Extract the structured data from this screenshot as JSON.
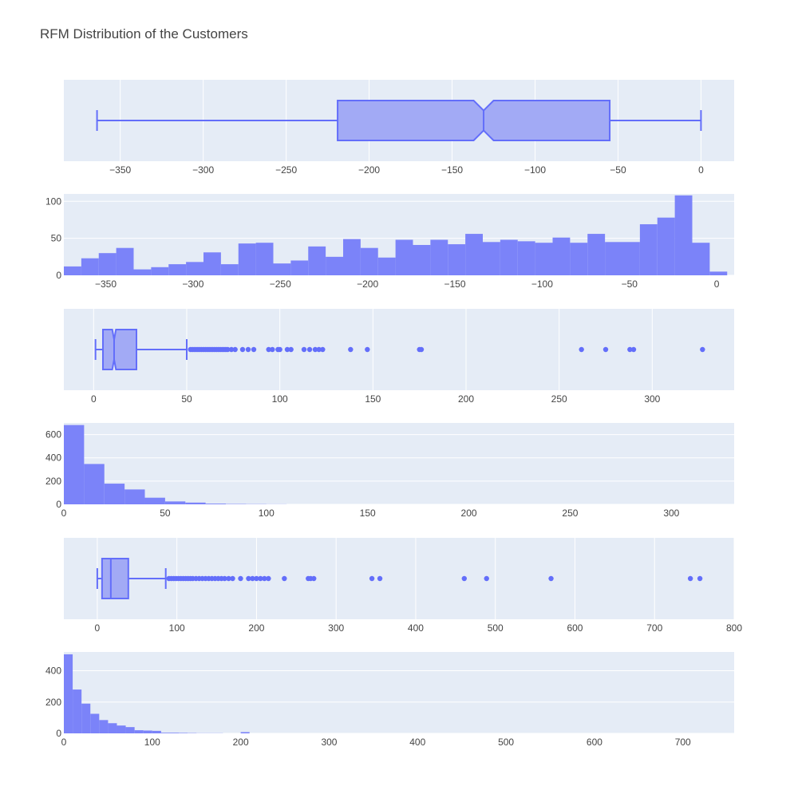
{
  "title": "RFM Distribution of the Customers",
  "colors": {
    "plot_bg": "#e5ecf6",
    "grid": "#ffffff",
    "box_fill": "#a2aaf5",
    "box_line": "#636efa",
    "bar_fill": "#7b83f9",
    "point": "#636efa",
    "text": "#444444"
  },
  "chart_data": [
    {
      "type": "box",
      "orientation": "horizontal",
      "notched": true,
      "xlim": [
        -384,
        20
      ],
      "ticks": [
        {
          "v": -350,
          "label": "−350"
        },
        {
          "v": -300,
          "label": "−300"
        },
        {
          "v": -250,
          "label": "−250"
        },
        {
          "v": -200,
          "label": "−200"
        },
        {
          "v": -150,
          "label": "−150"
        },
        {
          "v": -100,
          "label": "−100"
        },
        {
          "v": -50,
          "label": "−50"
        },
        {
          "v": 0,
          "label": "0"
        }
      ],
      "lower_fence": -364,
      "q1": -219,
      "median": -131,
      "q3": -55,
      "upper_fence": 0,
      "notch": [
        -137,
        -125
      ],
      "outliers": []
    },
    {
      "type": "histogram",
      "xlim": [
        -374,
        10
      ],
      "ylim": [
        0,
        110
      ],
      "bin_start": -374,
      "bin_width": 10,
      "counts": [
        12,
        23,
        30,
        37,
        8,
        11,
        15,
        18,
        31,
        15,
        43,
        44,
        16,
        20,
        39,
        25,
        49,
        37,
        24,
        48,
        41,
        48,
        42,
        56,
        45,
        48,
        46,
        44,
        51,
        44,
        56,
        45,
        45,
        69,
        78,
        108,
        44,
        5
      ],
      "xticks": [
        {
          "v": -350,
          "label": "−350"
        },
        {
          "v": -300,
          "label": "−300"
        },
        {
          "v": -250,
          "label": "−250"
        },
        {
          "v": -200,
          "label": "−200"
        },
        {
          "v": -150,
          "label": "−150"
        },
        {
          "v": -100,
          "label": "−100"
        },
        {
          "v": -50,
          "label": "−50"
        },
        {
          "v": 0,
          "label": "0"
        }
      ],
      "yticks": [
        {
          "v": 0,
          "label": "0"
        },
        {
          "v": 50,
          "label": "50"
        },
        {
          "v": 100,
          "label": "100"
        }
      ]
    },
    {
      "type": "box",
      "orientation": "horizontal",
      "notched": true,
      "xlim": [
        -16,
        344
      ],
      "ticks": [
        {
          "v": 0,
          "label": "0"
        },
        {
          "v": 50,
          "label": "50"
        },
        {
          "v": 100,
          "label": "100"
        },
        {
          "v": 150,
          "label": "150"
        },
        {
          "v": 200,
          "label": "200"
        },
        {
          "v": 250,
          "label": "250"
        },
        {
          "v": 300,
          "label": "300"
        }
      ],
      "lower_fence": 1,
      "q1": 5,
      "median": 11,
      "q3": 23,
      "upper_fence": 50,
      "notch": [
        10,
        12
      ],
      "outliers": [
        52,
        53,
        54,
        55,
        56,
        57,
        58,
        59,
        60,
        61,
        62,
        63,
        64,
        65,
        66,
        67,
        68,
        69,
        70,
        71,
        72,
        74,
        76,
        80,
        83,
        86,
        94,
        96,
        99,
        100,
        104,
        106,
        113,
        116,
        119,
        121,
        123,
        138,
        147,
        175,
        176,
        262,
        275,
        288,
        290,
        327
      ]
    },
    {
      "type": "histogram",
      "xlim": [
        0,
        331
      ],
      "ylim": [
        0,
        700
      ],
      "bin_start": 0,
      "bin_width": 10,
      "counts": [
        682,
        347,
        178,
        128,
        57,
        25,
        15,
        6,
        3,
        2,
        1,
        0,
        0,
        0,
        0,
        0,
        0,
        0,
        0,
        0,
        0,
        0,
        0,
        0,
        0,
        0,
        0,
        0,
        0,
        0,
        0,
        0,
        0
      ],
      "xticks": [
        {
          "v": 0,
          "label": "0"
        },
        {
          "v": 50,
          "label": "50"
        },
        {
          "v": 100,
          "label": "100"
        },
        {
          "v": 150,
          "label": "150"
        },
        {
          "v": 200,
          "label": "200"
        },
        {
          "v": 250,
          "label": "250"
        },
        {
          "v": 300,
          "label": "300"
        }
      ],
      "yticks": [
        {
          "v": 0,
          "label": "0"
        },
        {
          "v": 200,
          "label": "200"
        },
        {
          "v": 400,
          "label": "400"
        },
        {
          "v": 600,
          "label": "600"
        }
      ]
    },
    {
      "type": "box",
      "orientation": "horizontal",
      "notched": false,
      "xlim": [
        -42,
        800
      ],
      "ticks": [
        {
          "v": 0,
          "label": "0"
        },
        {
          "v": 100,
          "label": "100"
        },
        {
          "v": 200,
          "label": "200"
        },
        {
          "v": 300,
          "label": "300"
        },
        {
          "v": 400,
          "label": "400"
        },
        {
          "v": 500,
          "label": "500"
        },
        {
          "v": 600,
          "label": "600"
        },
        {
          "v": 700,
          "label": "700"
        },
        {
          "v": 800,
          "label": "800"
        }
      ],
      "lower_fence": 0,
      "q1": 6,
      "median": 17,
      "q3": 39,
      "upper_fence": 86,
      "notch": [
        17,
        17
      ],
      "outliers": [
        90,
        93,
        96,
        99,
        102,
        105,
        108,
        111,
        114,
        117,
        120,
        124,
        128,
        132,
        136,
        140,
        144,
        148,
        152,
        156,
        160,
        165,
        170,
        180,
        190,
        195,
        200,
        205,
        210,
        215,
        235,
        265,
        268,
        272,
        345,
        355,
        461,
        489,
        570,
        745,
        757
      ]
    },
    {
      "type": "histogram",
      "xlim": [
        0,
        758
      ],
      "ylim": [
        0,
        520
      ],
      "bin_start": 0,
      "bin_width": 10,
      "counts": [
        505,
        280,
        190,
        125,
        85,
        65,
        50,
        40,
        20,
        18,
        16,
        4,
        4,
        3,
        2,
        1,
        1,
        1,
        0,
        0,
        8,
        0,
        0,
        0,
        0,
        0,
        0,
        0,
        0,
        0,
        0,
        0,
        0,
        0,
        0,
        0,
        0,
        0,
        0,
        0,
        0,
        0,
        0,
        0,
        0,
        0,
        0,
        0,
        0,
        0,
        0,
        0,
        0,
        0,
        0,
        0,
        0,
        0,
        0,
        0,
        0,
        0,
        0,
        0,
        0,
        0,
        0,
        0,
        0,
        0,
        0,
        0,
        0,
        0,
        0,
        0
      ],
      "xticks": [
        {
          "v": 0,
          "label": "0"
        },
        {
          "v": 100,
          "label": "100"
        },
        {
          "v": 200,
          "label": "200"
        },
        {
          "v": 300,
          "label": "300"
        },
        {
          "v": 400,
          "label": "400"
        },
        {
          "v": 500,
          "label": "500"
        },
        {
          "v": 600,
          "label": "600"
        },
        {
          "v": 700,
          "label": "700"
        }
      ],
      "yticks": [
        {
          "v": 0,
          "label": "0"
        },
        {
          "v": 200,
          "label": "200"
        },
        {
          "v": 400,
          "label": "400"
        }
      ]
    }
  ]
}
